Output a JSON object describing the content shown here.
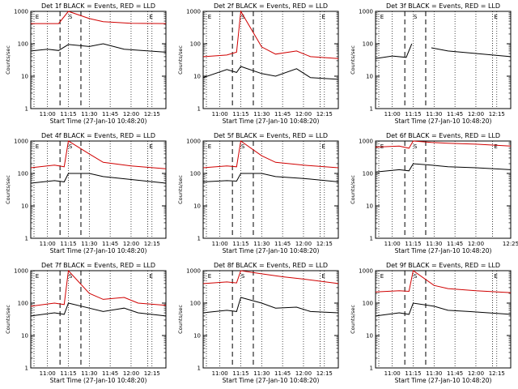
{
  "chart_data": [
    {
      "type": "line",
      "title": "Det 1f BLACK = Events, RED = LLD",
      "xlabel": "Start Time (27-Jan-10 10:48:20)",
      "ylabel": "Counts/sec",
      "yscale": "log",
      "ylim": [
        1,
        1000
      ],
      "xlim": [
        "10:48",
        "12:25"
      ],
      "xticks": [
        "11:00",
        "11:15",
        "11:30",
        "11:45",
        "12:00",
        "12:15"
      ],
      "yticks": [
        "1",
        "10",
        "100",
        "1000"
      ],
      "marker_labels": [
        "E",
        "S",
        "E"
      ],
      "series": [
        {
          "color": "#d00000",
          "x": [
            "10:48",
            "11:08",
            "11:15",
            "11:30",
            "11:40",
            "12:00",
            "12:25"
          ],
          "values": [
            420,
            420,
            1000,
            600,
            480,
            430,
            420
          ]
        },
        {
          "color": "#000000",
          "x": [
            "10:48",
            "11:00",
            "11:08",
            "11:15",
            "11:30",
            "11:40",
            "11:55",
            "12:25"
          ],
          "values": [
            60,
            68,
            62,
            95,
            82,
            100,
            68,
            55
          ]
        }
      ]
    },
    {
      "type": "line",
      "title": "Det 2f BLACK = Events, RED = LLD",
      "xlabel": "Start Time (27-Jan-10 10:48:20)",
      "ylabel": "Counts/sec",
      "yscale": "log",
      "ylim": [
        1,
        1000
      ],
      "xlim": [
        "10:48",
        "12:25"
      ],
      "xticks": [
        "11:00",
        "11:15",
        "11:30",
        "11:45",
        "12:00",
        "12:15"
      ],
      "yticks": [
        "1",
        "10",
        "100",
        "1000"
      ],
      "marker_labels": [
        "E",
        "S",
        "E"
      ],
      "series": [
        {
          "color": "#d00000",
          "x": [
            "10:48",
            "11:05",
            "11:12",
            "11:15",
            "11:30",
            "11:40",
            "11:55",
            "12:05",
            "12:25"
          ],
          "values": [
            40,
            45,
            55,
            1000,
            80,
            48,
            60,
            40,
            35
          ]
        },
        {
          "color": "#000000",
          "x": [
            "10:48",
            "11:05",
            "11:12",
            "11:15",
            "11:30",
            "11:40",
            "11:55",
            "12:05",
            "12:25"
          ],
          "values": [
            9,
            16,
            13,
            20,
            12,
            10,
            17,
            9,
            8
          ]
        }
      ]
    },
    {
      "type": "line",
      "title": "Det 3f BLACK = Events, RED = LLD",
      "xlabel": "Start Time (27-Jan-10 10:48:20)",
      "ylabel": "Counts/sec",
      "yscale": "log",
      "ylim": [
        1,
        1000
      ],
      "xlim": [
        "10:48",
        "12:25"
      ],
      "xticks": [
        "11:00",
        "11:15",
        "11:30",
        "11:45",
        "12:00",
        "12:15"
      ],
      "yticks": [
        "1",
        "10",
        "100",
        "1000"
      ],
      "marker_labels": [
        "E",
        "S",
        "E"
      ],
      "series": [
        {
          "color": "#000000",
          "x": [
            "10:48",
            "11:00",
            "11:10",
            "11:14",
            "11:16",
            "11:28",
            "11:40",
            "12:00",
            "12:25"
          ],
          "values": [
            35,
            42,
            38,
            100,
            null,
            75,
            60,
            50,
            40
          ]
        }
      ]
    },
    {
      "type": "line",
      "title": "Det 4f BLACK = Events, RED = LLD",
      "xlabel": "Start Time (27-Jan-10 10:48:20)",
      "ylabel": "Counts/sec",
      "yscale": "log",
      "ylim": [
        1,
        1000
      ],
      "xlim": [
        "10:48",
        "12:25"
      ],
      "xticks": [
        "11:00",
        "11:15",
        "11:30",
        "11:45",
        "12:00",
        "12:15"
      ],
      "yticks": [
        "1",
        "10",
        "100",
        "1000"
      ],
      "marker_labels": [
        "E",
        "S",
        "E"
      ],
      "series": [
        {
          "color": "#d00000",
          "x": [
            "10:48",
            "11:05",
            "11:12",
            "11:15",
            "11:30",
            "11:40",
            "12:00",
            "12:25"
          ],
          "values": [
            150,
            180,
            160,
            1000,
            400,
            220,
            170,
            140
          ]
        },
        {
          "color": "#000000",
          "x": [
            "10:48",
            "11:05",
            "11:12",
            "11:15",
            "11:30",
            "11:40",
            "12:00",
            "12:25"
          ],
          "values": [
            50,
            60,
            55,
            100,
            100,
            80,
            65,
            50
          ]
        }
      ]
    },
    {
      "type": "line",
      "title": "Det 5f BLACK = Events, RED = LLD",
      "xlabel": "Start Time (27-Jan-10 10:48:20)",
      "ylabel": "Counts/sec",
      "yscale": "log",
      "ylim": [
        1,
        1000
      ],
      "xlim": [
        "10:48",
        "12:25"
      ],
      "xticks": [
        "11:00",
        "11:15",
        "11:30",
        "11:45",
        "12:00",
        "12:15"
      ],
      "yticks": [
        "1",
        "10",
        "100",
        "1000"
      ],
      "marker_labels": [
        "E",
        "S",
        "E"
      ],
      "series": [
        {
          "color": "#d00000",
          "x": [
            "10:48",
            "11:05",
            "11:12",
            "11:15",
            "11:30",
            "11:40",
            "12:00",
            "12:25"
          ],
          "values": [
            150,
            170,
            160,
            1000,
            350,
            220,
            180,
            150
          ]
        },
        {
          "color": "#000000",
          "x": [
            "10:48",
            "11:05",
            "11:12",
            "11:15",
            "11:30",
            "11:40",
            "12:00",
            "12:25"
          ],
          "values": [
            55,
            60,
            58,
            100,
            100,
            80,
            70,
            55
          ]
        }
      ]
    },
    {
      "type": "line",
      "title": "Det 6f BLACK = Events, RED = LLD",
      "xlabel": "Start Time (27-Jan-10 10:48:20)",
      "ylabel": "Counts/sec",
      "yscale": "log",
      "ylim": [
        1,
        1000
      ],
      "xlim": [
        "10:48",
        "12:25"
      ],
      "xticks": [
        "11:00",
        "11:15",
        "11:30",
        "11:45",
        "12:00",
        "12:25"
      ],
      "yticks": [
        "1",
        "10",
        "100",
        "1000"
      ],
      "marker_labels": [
        "E",
        "S",
        "E"
      ],
      "series": [
        {
          "color": "#d00000",
          "x": [
            "10:48",
            "11:05",
            "11:12",
            "11:15",
            "11:28",
            "11:40",
            "12:00",
            "12:25"
          ],
          "values": [
            650,
            700,
            600,
            1000,
            900,
            850,
            800,
            700
          ]
        },
        {
          "color": "#000000",
          "x": [
            "10:48",
            "11:05",
            "11:12",
            "11:15",
            "11:28",
            "11:40",
            "12:00",
            "12:25"
          ],
          "values": [
            110,
            130,
            120,
            200,
            180,
            160,
            150,
            130
          ]
        }
      ]
    },
    {
      "type": "line",
      "title": "Det 7f BLACK = Events, RED = LLD",
      "xlabel": "Start Time (27-Jan-10 10:48:20)",
      "ylabel": "Counts/sec",
      "yscale": "log",
      "ylim": [
        1,
        1000
      ],
      "xlim": [
        "10:48",
        "12:25"
      ],
      "xticks": [
        "11:00",
        "11:15",
        "11:30",
        "11:45",
        "12:00",
        "12:15"
      ],
      "yticks": [
        "1",
        "10",
        "100",
        "1000"
      ],
      "marker_labels": [
        "E",
        "S",
        "E"
      ],
      "series": [
        {
          "color": "#d00000",
          "x": [
            "10:48",
            "11:05",
            "11:12",
            "11:15",
            "11:30",
            "11:40",
            "11:55",
            "12:05",
            "12:25"
          ],
          "values": [
            80,
            100,
            90,
            1000,
            200,
            130,
            150,
            100,
            85
          ]
        },
        {
          "color": "#000000",
          "x": [
            "10:48",
            "11:05",
            "11:12",
            "11:15",
            "11:30",
            "11:40",
            "11:55",
            "12:05",
            "12:25"
          ],
          "values": [
            40,
            50,
            45,
            100,
            70,
            55,
            70,
            50,
            40
          ]
        }
      ]
    },
    {
      "type": "line",
      "title": "Det 8f BLACK = Events, RED = LLD",
      "xlabel": "Start Time (27-Jan-10 10:48:20)",
      "ylabel": "Counts/sec",
      "yscale": "log",
      "ylim": [
        1,
        1000
      ],
      "xlim": [
        "10:48",
        "12:25"
      ],
      "xticks": [
        "11:00",
        "11:15",
        "11:30",
        "11:45",
        "12:00",
        "12:15"
      ],
      "yticks": [
        "1",
        "10",
        "100",
        "1000"
      ],
      "marker_labels": [
        "E",
        "S",
        "E"
      ],
      "series": [
        {
          "color": "#d00000",
          "x": [
            "10:48",
            "11:05",
            "11:12",
            "11:15",
            "11:30",
            "11:45",
            "12:00",
            "12:25"
          ],
          "values": [
            400,
            450,
            420,
            1000,
            800,
            650,
            550,
            400
          ]
        },
        {
          "color": "#000000",
          "x": [
            "10:48",
            "11:05",
            "11:12",
            "11:15",
            "11:30",
            "11:40",
            "11:55",
            "12:05",
            "12:25"
          ],
          "values": [
            50,
            60,
            55,
            150,
            100,
            70,
            75,
            55,
            50
          ]
        }
      ]
    },
    {
      "type": "line",
      "title": "Det 9f BLACK = Events, RED = LLD",
      "xlabel": "Start Time (27-Jan-10 10:48:20)",
      "ylabel": "Counts/sec",
      "yscale": "log",
      "ylim": [
        1,
        1000
      ],
      "xlim": [
        "10:48",
        "12:25"
      ],
      "xticks": [
        "11:00",
        "11:15",
        "11:30",
        "11:45",
        "12:00",
        "12:15"
      ],
      "yticks": [
        "1",
        "10",
        "100",
        "1000"
      ],
      "marker_labels": [
        "E",
        "S",
        "E"
      ],
      "series": [
        {
          "color": "#d00000",
          "x": [
            "10:48",
            "11:05",
            "11:12",
            "11:15",
            "11:30",
            "11:40",
            "12:00",
            "12:25"
          ],
          "values": [
            220,
            240,
            230,
            1000,
            350,
            280,
            240,
            210
          ]
        },
        {
          "color": "#000000",
          "x": [
            "10:48",
            "11:05",
            "11:12",
            "11:15",
            "11:30",
            "11:40",
            "11:55",
            "12:25"
          ],
          "values": [
            40,
            50,
            45,
            100,
            80,
            60,
            55,
            45
          ]
        }
      ]
    }
  ]
}
